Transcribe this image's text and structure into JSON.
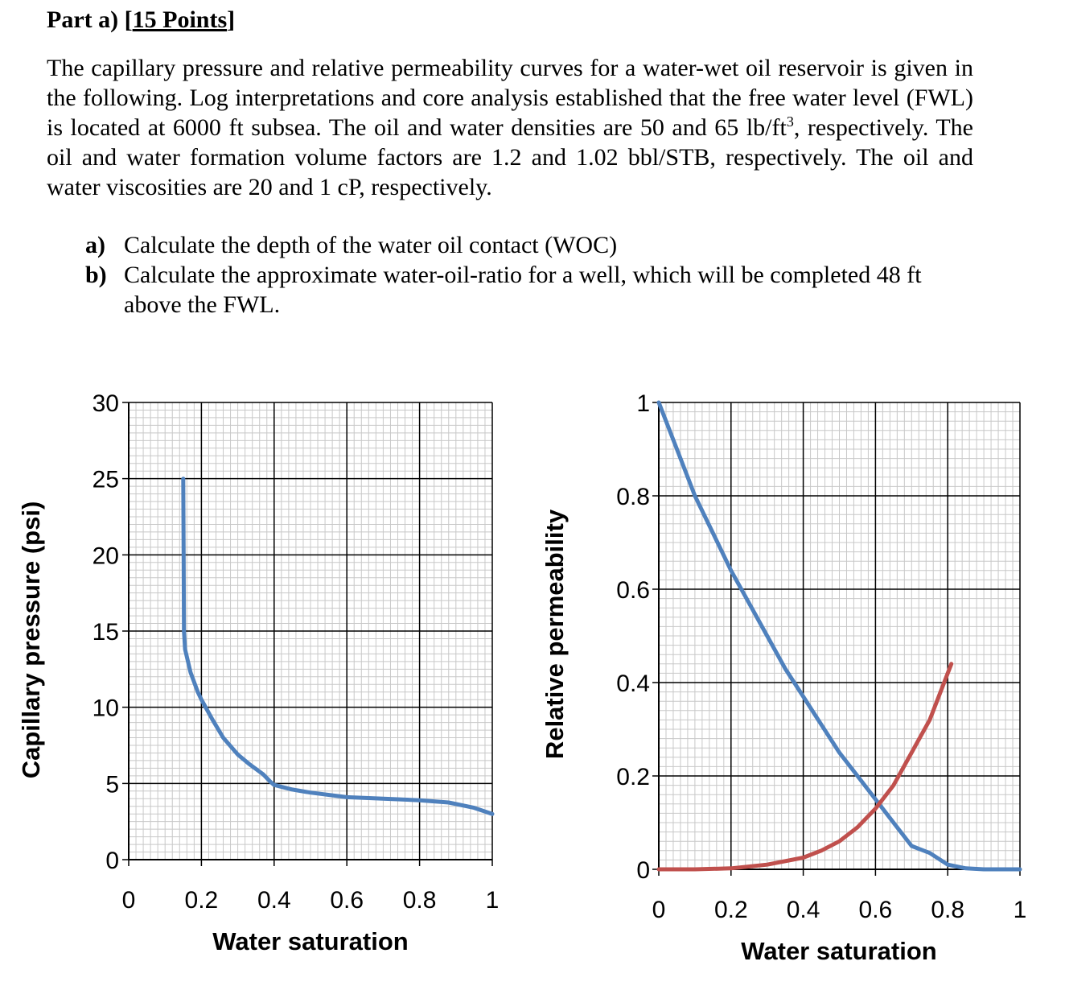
{
  "heading": {
    "prefix": "Part a) [",
    "points": "15 Points",
    "suffix": "]"
  },
  "paragraph": {
    "before_sup": "The capillary pressure and relative permeability curves for a water-wet oil reservoir is given in the following. Log interpretations and core analysis established that the free water level (FWL) is located at 6000 ft subsea. The oil and water densities are 50 and 65 lb/ft",
    "sup": "3",
    "after_sup": ", respectively. The oil and water formation volume factors are 1.2 and 1.02 bbl/STB, respectively. The oil and water viscosities are 20 and 1 cP, respectively."
  },
  "questions": [
    {
      "label": "a)",
      "text": "Calculate the depth of the water oil contact (WOC)"
    },
    {
      "label": "b)",
      "text": "Calculate the approximate water-oil-ratio for a well, which will be completed 48 ft above the FWL."
    }
  ],
  "chart_data": [
    {
      "type": "line",
      "xlabel": "Water saturation",
      "ylabel": "Capillary pressure (psi)",
      "xlim": [
        0,
        1
      ],
      "ylim": [
        0,
        30
      ],
      "x_ticks": [
        "0",
        "0.2",
        "0.4",
        "0.6",
        "0.8",
        "1"
      ],
      "y_ticks": [
        "0",
        "5",
        "10",
        "15",
        "20",
        "25",
        "30"
      ],
      "grid": true,
      "series": [
        {
          "color": "#4f81bd",
          "points": [
            [
              0.15,
              25
            ],
            [
              0.151,
              20
            ],
            [
              0.152,
              15
            ],
            [
              0.155,
              13.8
            ],
            [
              0.17,
              12.3
            ],
            [
              0.19,
              11
            ],
            [
              0.2,
              10.5
            ],
            [
              0.23,
              9.2
            ],
            [
              0.26,
              8
            ],
            [
              0.3,
              6.9
            ],
            [
              0.33,
              6.3
            ],
            [
              0.37,
              5.6
            ],
            [
              0.39,
              5.1
            ],
            [
              0.4,
              4.9
            ],
            [
              0.45,
              4.6
            ],
            [
              0.5,
              4.4
            ],
            [
              0.6,
              4.1
            ],
            [
              0.7,
              4.0
            ],
            [
              0.8,
              3.9
            ],
            [
              0.88,
              3.75
            ],
            [
              0.95,
              3.4
            ],
            [
              1.0,
              3.0
            ]
          ]
        }
      ]
    },
    {
      "type": "line",
      "xlabel": "Water saturation",
      "ylabel": "Relative permeability",
      "xlim": [
        0,
        1
      ],
      "ylim": [
        0,
        1
      ],
      "x_ticks": [
        "0",
        "0.2",
        "0.4",
        "0.6",
        "0.8",
        "1"
      ],
      "y_ticks": [
        "0",
        "0.2",
        "0.4",
        "0.6",
        "0.8",
        "1"
      ],
      "grid": true,
      "series": [
        {
          "color": "#4f81bd",
          "points": [
            [
              0,
              1.0
            ],
            [
              0.05,
              0.9
            ],
            [
              0.1,
              0.8
            ],
            [
              0.15,
              0.72
            ],
            [
              0.2,
              0.64
            ],
            [
              0.25,
              0.57
            ],
            [
              0.3,
              0.5
            ],
            [
              0.35,
              0.43
            ],
            [
              0.4,
              0.37
            ],
            [
              0.45,
              0.31
            ],
            [
              0.5,
              0.25
            ],
            [
              0.55,
              0.2
            ],
            [
              0.6,
              0.15
            ],
            [
              0.65,
              0.1
            ],
            [
              0.7,
              0.05
            ],
            [
              0.75,
              0.035
            ],
            [
              0.8,
              0.01
            ],
            [
              0.85,
              0.002
            ],
            [
              0.9,
              0
            ],
            [
              1.0,
              0
            ]
          ]
        },
        {
          "color": "#c0504d",
          "points": [
            [
              0,
              0
            ],
            [
              0.1,
              0
            ],
            [
              0.2,
              0.002
            ],
            [
              0.3,
              0.01
            ],
            [
              0.4,
              0.025
            ],
            [
              0.45,
              0.04
            ],
            [
              0.5,
              0.06
            ],
            [
              0.55,
              0.09
            ],
            [
              0.6,
              0.13
            ],
            [
              0.65,
              0.18
            ],
            [
              0.7,
              0.25
            ],
            [
              0.75,
              0.32
            ],
            [
              0.81,
              0.44
            ]
          ]
        }
      ]
    }
  ]
}
